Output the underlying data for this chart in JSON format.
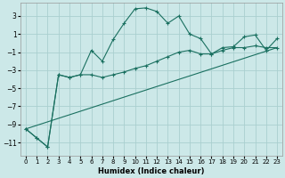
{
  "xlabel": "Humidex (Indice chaleur)",
  "background_color": "#cce8e8",
  "grid_color": "#aacfcf",
  "line_color": "#1a7060",
  "xlim": [
    -0.5,
    23.5
  ],
  "ylim": [
    -12.5,
    4.5
  ],
  "xticks": [
    0,
    1,
    2,
    3,
    4,
    5,
    6,
    7,
    8,
    9,
    10,
    11,
    12,
    13,
    14,
    15,
    16,
    17,
    18,
    19,
    20,
    21,
    22,
    23
  ],
  "yticks": [
    -11,
    -9,
    -7,
    -5,
    -3,
    -1,
    1,
    3
  ],
  "line1_x": [
    0,
    1,
    2,
    3,
    4,
    5,
    6,
    7,
    8,
    9,
    10,
    11,
    12,
    13,
    14,
    15,
    16,
    17,
    18,
    19,
    20,
    21,
    22,
    23
  ],
  "line1_y": [
    -9.5,
    -10.5,
    -11.5,
    -3.5,
    -3.8,
    -3.5,
    -0.8,
    -2.0,
    0.4,
    2.2,
    3.8,
    3.9,
    3.5,
    2.2,
    3.0,
    1.0,
    0.5,
    -1.2,
    -0.5,
    -0.4,
    0.7,
    0.9,
    -0.8,
    0.5
  ],
  "line2_x": [
    0,
    1,
    2,
    3,
    4,
    5,
    6,
    7,
    8,
    9,
    10,
    11,
    12,
    13,
    14,
    15,
    16,
    17,
    18,
    19,
    20,
    21,
    22,
    23
  ],
  "line2_y": [
    -9.5,
    -10.5,
    -11.5,
    -3.5,
    -3.8,
    -3.5,
    -3.5,
    -3.8,
    -3.5,
    -3.2,
    -2.8,
    -2.5,
    -2.0,
    -1.5,
    -1.0,
    -0.8,
    -1.2,
    -1.2,
    -0.8,
    -0.5,
    -0.5,
    -0.3,
    -0.5,
    -0.5
  ],
  "line3_x": [
    0,
    23
  ],
  "line3_y": [
    -9.5,
    -0.5
  ]
}
